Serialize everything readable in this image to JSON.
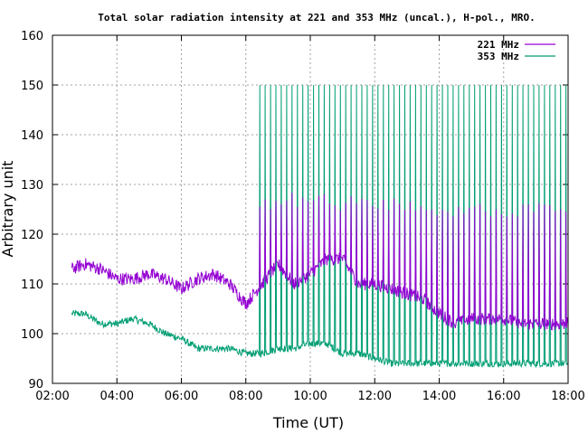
{
  "chart_data": {
    "type": "line",
    "title": "Total solar radiation intensity at 221 and 353 MHz (uncal.), H-pol., MRO.",
    "xlabel": "Time (UT)",
    "ylabel": "Arbitrary unit",
    "xlim": [
      2,
      18
    ],
    "ylim": [
      90,
      160
    ],
    "x_unit": "hours UT",
    "x_ticks": [
      "02:00",
      "04:00",
      "06:00",
      "08:00",
      "10:00",
      "12:00",
      "14:00",
      "16:00",
      "18:00"
    ],
    "y_ticks": [
      "90",
      "100",
      "110",
      "120",
      "130",
      "140",
      "150",
      "160"
    ],
    "grid": true,
    "legend_position": "top-right",
    "x": [
      2.6,
      3.0,
      3.5,
      4.0,
      4.5,
      5.0,
      5.5,
      6.0,
      6.5,
      7.0,
      7.5,
      8.0,
      8.5,
      9.0,
      9.5,
      10.0,
      10.5,
      11.0,
      11.5,
      12.0,
      12.5,
      13.0,
      13.5,
      14.0,
      14.5,
      15.0,
      15.5,
      16.0,
      16.5,
      17.0,
      17.5,
      18.0
    ],
    "series": [
      {
        "name": "221 MHz",
        "color": "#9400d3",
        "values": [
          113,
          114,
          113,
          111,
          111,
          112,
          111,
          109,
          111,
          112,
          110,
          106,
          110,
          114,
          110,
          112,
          115,
          115,
          110,
          110,
          109,
          108,
          107,
          104,
          102,
          103,
          103,
          103,
          102,
          102,
          102,
          102
        ]
      },
      {
        "name": "353 MHz",
        "color": "#009e73",
        "values": [
          104,
          104,
          102,
          102,
          103,
          102,
          100,
          99,
          97,
          97,
          97,
          96,
          96,
          97,
          97,
          98,
          98,
          96,
          96,
          95,
          94,
          94,
          94,
          94,
          94,
          94,
          94,
          94,
          94,
          94,
          94,
          94
        ]
      }
    ],
    "spike_interval_minutes": 10,
    "spike_peaks": {
      "221 MHz": [
        131,
        127,
        128,
        128,
        128,
        127,
        126,
        126,
        126,
        126,
        125,
        125,
        126,
        126,
        127,
        126,
        127,
        126,
        127,
        126,
        126,
        126,
        125,
        125,
        125,
        125,
        125,
        125,
        125,
        125,
        125,
        125
      ],
      "353 MHz": 150
    }
  }
}
